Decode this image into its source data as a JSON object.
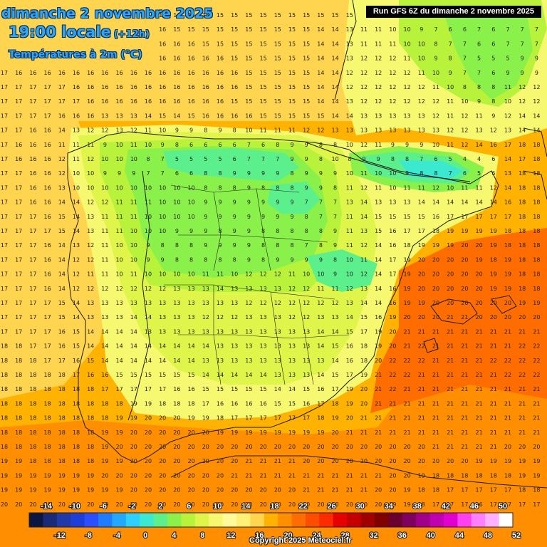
{
  "header": {
    "date": "dimanche 2 novembre 2025",
    "time": "19:00 locale",
    "lead": "(+12h)",
    "variable": "Températures à 2m (°C)"
  },
  "run_label": "Run GFS 6Z du dimanche 2 novembre 2025",
  "copyright": "Copyright 2025 Meteociel.fr",
  "legend": {
    "upper_labels": [
      "-14",
      "-10",
      "-6",
      "-2",
      "2",
      "6",
      "10",
      "14",
      "18",
      "22",
      "26",
      "30",
      "34",
      "38",
      "42",
      "46",
      "50"
    ],
    "lower_labels": [
      "-12",
      "-8",
      "-4",
      "0",
      "4",
      "8",
      "12",
      "16",
      "20",
      "24",
      "28",
      "32",
      "36",
      "40",
      "44",
      "48",
      "52"
    ],
    "colors": [
      "#0b1740",
      "#1a2a78",
      "#1f3aa8",
      "#1b3fd8",
      "#2a4fff",
      "#1e7cff",
      "#21a8ff",
      "#2ed0ff",
      "#3be8d0",
      "#5cf08c",
      "#8af04a",
      "#b8f23a",
      "#e0f54a",
      "#f6f870",
      "#fffa9a",
      "#fff176",
      "#ffd54f",
      "#ffb300",
      "#ff8f00",
      "#ff6d00",
      "#ff4d00",
      "#ff2a00",
      "#e60000",
      "#c40000",
      "#a00000",
      "#800000",
      "#6a0030",
      "#800060",
      "#a0008a",
      "#c000b0",
      "#e000d0",
      "#ff40f0",
      "#ff80ff",
      "#ffb0ff",
      "#ffffff"
    ],
    "key_colors": {
      "t8": "#8af04a",
      "t10": "#b8f23a",
      "t12": "#e0f54a",
      "t14": "#f6f870",
      "t16": "#ffd54f",
      "t18": "#ffb300",
      "t20": "#ff8f00",
      "t22": "#ff6d00",
      "t6": "#5cf08c",
      "t4": "#3be8d0"
    }
  },
  "grid_values": [
    "17 17 16 16 16 16 16 16 16 16 16 16 16 16 15 15 15 15 15 15 15 15 15 15 15 13 11 11 9 8 7 7 6 7 6 6 7 7",
    "16 16 16 16 16 16 16 16 16 16 16 16 15 15 15 15 15 15 15 15 15 15 14 14 13 11 11 10 10 9 7 6 6 7 6 7 7 7",
    "16 16 16 16 16 16 16 16 16 16 16 16 16 16 15 15 15 15 15 15 15 15 14 14 13 11 11 11 10 10 8 7 7 6 6 7 7 7",
    "16 16 16 16 16 16 16 16 16 16 16 16 16 16 16 16 15 15 15 15 15 15 14 14 13 12 12 12 11 10 9 8 7 5 5 5 9 9",
    "17 16 16 16 16 16 16 16 16 16 16 16 16 16 16 16 16 15 15 15 15 15 14 14 12 12 12 12 12 11 10 9 7 7 6 9 9 9",
    "17 17 17 17 17 16 16 16 16 16 16 16 16 16 16 16 16 15 15 15 15 15 14 14 12 12 12 12 12 12 11 10 8 8 8 11 12 12",
    "17 17 17 17 17 17 16 16 16 16 16 16 16 16 16 16 15 15 15 15 15 15 14 14 13 12 12 12 12 12 12 11 10 9 8 10 12 12",
    "17 17 17 17 16 16 16 13 13 13 14 15 14 15 16 16 16 16 15 15 15 15 15 14 14 13 13 13 13 13 12 11 12 11 9 12 14 14",
    "17 17 16 16 14 13 12 12 13 12 11 10 9 9 8 9 8 10 11 11 11 12 12 13 13 13 13 13 13 13 13 12 12 13 12 13 14 14",
    "17 16 16 16 11 11 11 9 10 11 10 9 8 6 6 6 6 7 6 8 9 9 8 8 10 12 11 9 9 9 10 11 12 14 16 17 18 18",
    "17 16 16 16 12 11 12 10 10 10 8 7 5 5 5 5 6 7 7 7 9 9 8 10 8 9 9 8 8 7 6 5 4 4 6 14 17 18",
    "17 17 16 16 12 10 10 9 9 9 7 7 6 6 8 8 9 9 9 9 8 9 9 9 10 11 10 10 9 8 8 7 6 5 6 13 18 18",
    "17 17 16 16 13 10 10 10 10 10 10 10 10 10 8 8 8 9 8 8 8 9 9 8 11 12 11 10 11 11 12 10 11 11 12 14 18 18",
    "17 17 16 16 14 14 12 12 11 11 11 10 10 10 9 9 9 9 9 9 9 7 7 7 13 14 13 13 13 14 14 14 14 14 14 16 18 18",
    "17 17 17 16 15 14 13 11 11 11 10 10 10 10 9 9 9 9 9 9 9 8 7 7 11 14 15 15 15 15 16 17 17 17 17 17 18 18",
    "17 17 17 17 15 14 13 11 11 10 10 10 9 9 9 8 9 9 8 8 8 8 8 9 11 13 15 16 17 17 18 19 19 19 19 18 18 18",
    "17 17 17 16 14 13 12 11 10 10 9 8 8 8 9 9 9 9 8 8 8 7 8 9 11 12 14 16 18 19 19 19 20 20 19 18 18 18",
    "17 17 17 16 14 12 12 11 10 10 9 9 8 8 8 8 8 9 8 9 9 9 9 8 10 11 14 17 19 20 20 20 20 19 18 19 18 18",
    "17 17 17 16 14 12 11 11 10 11 10 10 10 10 11 11 10 12 12 12 11 10 10 9 10 12 14 17 19 20 20 20 20 20 19 19 18 18",
    "17 17 17 16 14 12 12 12 12 12 12 12 13 13 13 14 13 13 13 13 12 12 11 11 12 13 14 16 19 20 20 20 20 20 19 19 18 18",
    "17 17 17 17 15 14 13 13 13 13 13 13 13 13 13 13 13 12 12 12 12 12 12 12 13 14 14 16 19 19 20 20 20 20 20 20 19 19",
    "17 17 17 17 15 14 13 13 13 14 14 13 13 13 12 12 12 13 13 13 12 12 13 13 14 15 16 19 20 20 20 21 21 20 20 20 20 20",
    "17 17 17 17 16 15 14 14 14 14 13 13 13 13 13 13 13 13 13 13 13 13 14 14 15 17 19 20 21 21 21 21 21 21 21 21 21 21",
    "18 18 17 17 16 15 14 14 14 14 14 14 14 14 14 13 13 13 13 13 13 13 14 15 16 18 19 20 21 22 21 21 21 21 21 21 22 22",
    "18 18 18 17 17 16 15 14 14 14 14 14 14 14 13 13 13 13 13 13 13 13 13 14 16 18 20 22 22 22 21 21 21 21 22 22 22 22",
    "18 18 18 18 18 17 16 16 15 15 15 15 15 15 14 14 14 14 14 13 13 13 14 15 17 19 21 22 22 21 21 21 21 21 21 22 22 22",
    "18 18 18 18 18 18 18 17 17 17 17 17 16 16 15 15 15 15 15 14 14 15 16 17 19 20 21 22 21 21 21 21 21 21 21 21 21 21",
    "18 18 18 18 18 18 18 18 18 19 19 18 18 18 17 16 16 16 16 15 15 16 17 18 19 20 21 21 21 21 21 21 21 21 21 21 21 21",
    "18 18 18 18 18 18 18 18 19 19 20 20 20 19 19 18 17 17 17 17 17 17 18 19 20 21 21 21 21 21 21 21 21 21 21 21 21 21",
    "18 18 18 18 18 18 18 19 19 20 20 20 20 20 20 19 19 19 19 19 19 19 19 20 21 21 21 21 21 21 21 21 21 21 21 21 21 21",
    "18 18 18 18 18 18 18 19 20 20 20 20 20 20 20 20 20 20 20 20 20 20 20 20 20 20 20 20 20 20 21 21 21 21 21 20 20 20",
    "19 19 18 18 18 18 18 19 19 20 20 20 20 20 20 20 20 21 21 21 21 20 20 20 20 20 20 20 20 20 20 20 20 19 19 19 19 19",
    "19 19 19 19 19 19 19 20 20 20 20 20 20 20 20 20 21 21 21 21 21 21 21 21 21 21 21 20 20 19 18 18 18 18 18 18 19 19",
    "19 19 19 19 19 19 19 19 19 20 20 20 20 20 20 20 20 20 20 20 20 21 21 21 21 21 20 20 19 18 18 17 17 17 17 17 18 18",
    "20 20 20 20 20 20 20 19 20 20 20 20 20 20 20 20 20 20 20 20 20 20 20 20 20 20 20 19 19 18 17 17 17 16 17 17 17 17",
    "20 20 20 20 20 20 20 20 20 20 20 20 20 20 20 20 20 20 20 20 21 21 21 21 20 20 20 19 18 18 17 17 17 17 17 17 17 17",
    "21 21 21 21 21 21 21 21 21 21 21 21 21 21 21 21 21 21 21 21 21 21 21 21 21 21 21 20 20 19 19 18 18 18 18 18 18 18",
    "21 21 21 21 21 21 21 21 21 21 21 21 21 21 21 21 21 21 21 21 21 21 21 21 21 21 21 20 20 19 19 18 18 18 18 18 18 18"
  ]
}
